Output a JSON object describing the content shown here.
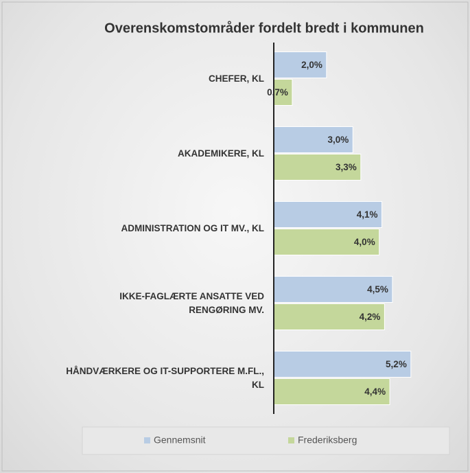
{
  "chart_data": {
    "type": "hbar",
    "title": "Overenskomstområder fordelt bredt i kommunen",
    "categories": [
      "CHEFER, KL",
      "AKADEMIKERE, KL",
      "ADMINISTRATION OG IT MV., KL",
      "IKKE-FAGLÆRTE ANSATTE VED RENGØRING MV.",
      "HÅNDVÆRKERE OG IT-SUPPORTERE M.FL., KL"
    ],
    "series": [
      {
        "name": "Gennemsnit",
        "color": "#b8cce4",
        "values": [
          2.0,
          3.0,
          4.1,
          4.5,
          5.2
        ],
        "value_labels": [
          "2,0%",
          "3,0%",
          "4,1%",
          "4,5%",
          "5,2%"
        ]
      },
      {
        "name": "Frederiksberg",
        "color": "#c4d79b",
        "values": [
          0.7,
          3.3,
          4.0,
          4.2,
          4.4
        ],
        "value_labels": [
          "0,7%",
          "3,3%",
          "4,0%",
          "4,2%",
          "4,4%"
        ]
      }
    ],
    "xlim": [
      0,
      7
    ],
    "legend": "bottom"
  }
}
